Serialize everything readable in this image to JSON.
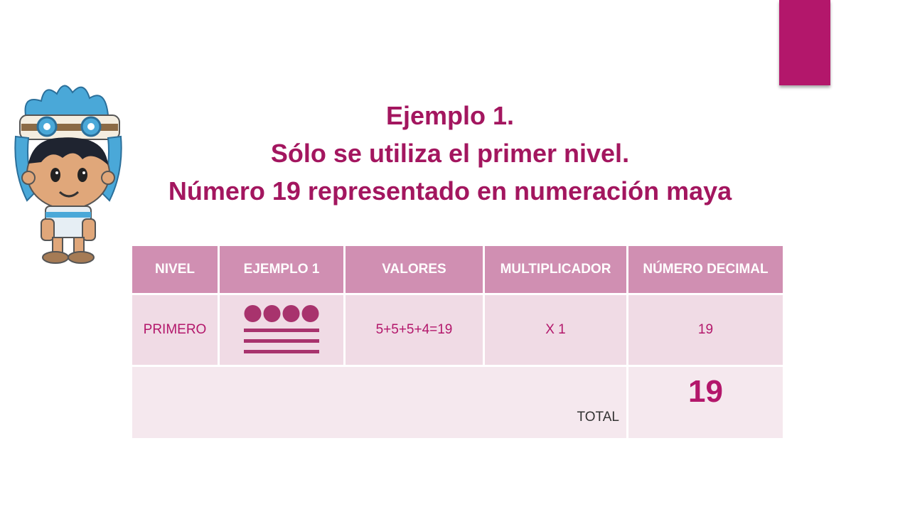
{
  "colors": {
    "accent": "#b3176b",
    "title": "#a3165f",
    "header_bg": "#d08fb2",
    "row_bg": "#f0dbe5",
    "total_bg": "#f5e8ee",
    "maya_symbol": "#a8336d"
  },
  "title": {
    "line1": "Ejemplo 1.",
    "line2": "Sólo se utiliza el primer nivel.",
    "line3": "Número 19 representado en numeración maya"
  },
  "table": {
    "headers": [
      "NIVEL",
      "EJEMPLO 1",
      "VALORES",
      "MULTIPLICADOR",
      "NÚMERO DECIMAL"
    ],
    "row": {
      "nivel": "PRIMERO",
      "maya_number": {
        "dots": 4,
        "bars": 3
      },
      "valores": "5+5+5+4=19",
      "multiplicador": "X 1",
      "numero_decimal": "19"
    },
    "total_label": "TOTAL",
    "total_value": "19"
  },
  "icons": {
    "mascot": "maya-boy-mascot-icon"
  }
}
